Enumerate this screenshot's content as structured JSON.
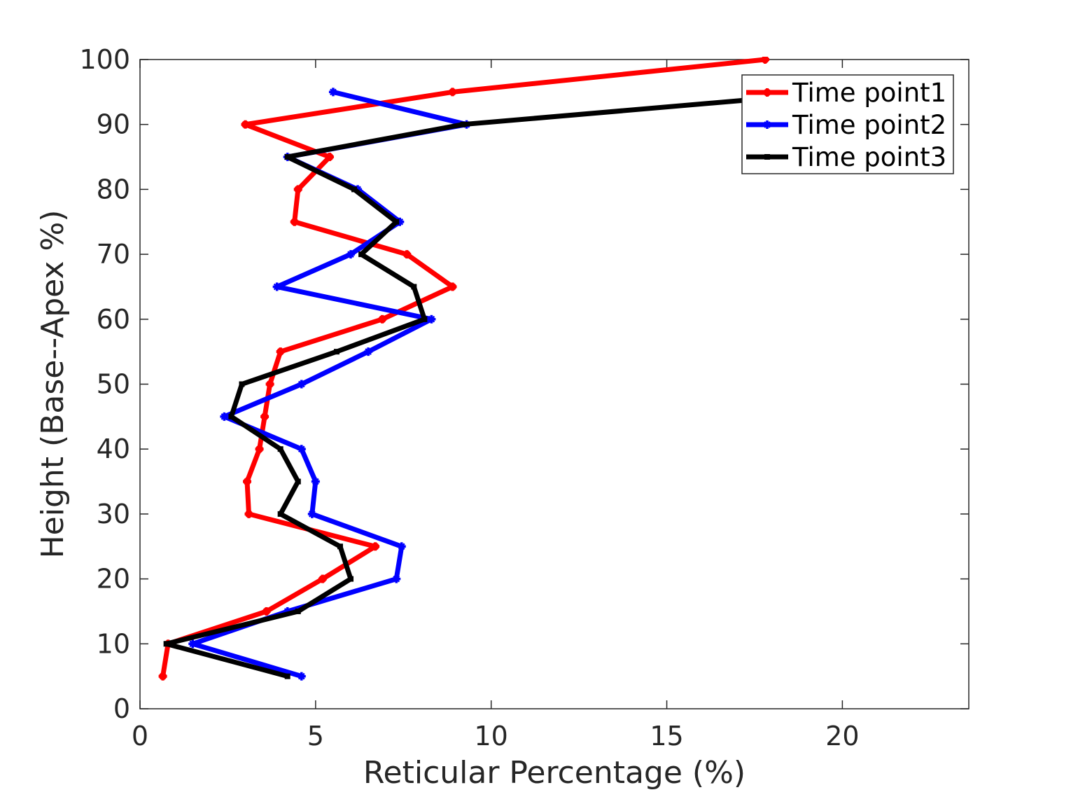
{
  "chart_data": {
    "type": "line",
    "xlabel": "Reticular Percentage (%)",
    "ylabel": "Height (Base--Apex %)",
    "xlim": [
      0,
      23.6
    ],
    "ylim": [
      0,
      100
    ],
    "xticks": [
      0,
      5,
      10,
      15,
      20
    ],
    "yticks": [
      0,
      10,
      20,
      30,
      40,
      50,
      60,
      70,
      80,
      90,
      100
    ],
    "legend_position": "top-right",
    "grid": false,
    "series": [
      {
        "name": "Time point1",
        "color": "#ff0000",
        "marker": "plus",
        "x": [
          0.65,
          0.8,
          3.6,
          5.2,
          6.7,
          3.1,
          3.05,
          3.4,
          3.55,
          3.7,
          4.0,
          6.9,
          8.9,
          7.6,
          4.4,
          4.5,
          5.4,
          3.0,
          8.9,
          17.8
        ],
        "y": [
          5,
          10,
          15,
          20,
          25,
          30,
          35,
          40,
          45,
          50,
          55,
          60,
          65,
          70,
          75,
          80,
          85,
          90,
          95,
          100
        ]
      },
      {
        "name": "Time point2",
        "color": "#0000ff",
        "marker": "star",
        "x": [
          4.6,
          1.5,
          4.2,
          7.3,
          7.45,
          4.9,
          5.0,
          4.6,
          2.4,
          4.6,
          6.5,
          8.3,
          3.9,
          6.0,
          7.4,
          6.2,
          4.2,
          9.3,
          5.5
        ],
        "y": [
          5,
          10,
          15,
          20,
          25,
          30,
          35,
          40,
          45,
          50,
          55,
          60,
          65,
          70,
          75,
          80,
          85,
          90,
          95
        ]
      },
      {
        "name": "Time point3",
        "color": "#000000",
        "marker": "dot",
        "x": [
          4.2,
          0.75,
          4.5,
          6.0,
          5.7,
          4.0,
          4.5,
          4.0,
          2.6,
          2.9,
          5.6,
          8.1,
          7.8,
          6.3,
          7.3,
          6.1,
          4.2,
          9.2,
          17.8
        ],
        "y": [
          5,
          10,
          15,
          20,
          25,
          30,
          35,
          40,
          45,
          50,
          55,
          60,
          65,
          70,
          75,
          80,
          85,
          90,
          94
        ]
      }
    ]
  }
}
